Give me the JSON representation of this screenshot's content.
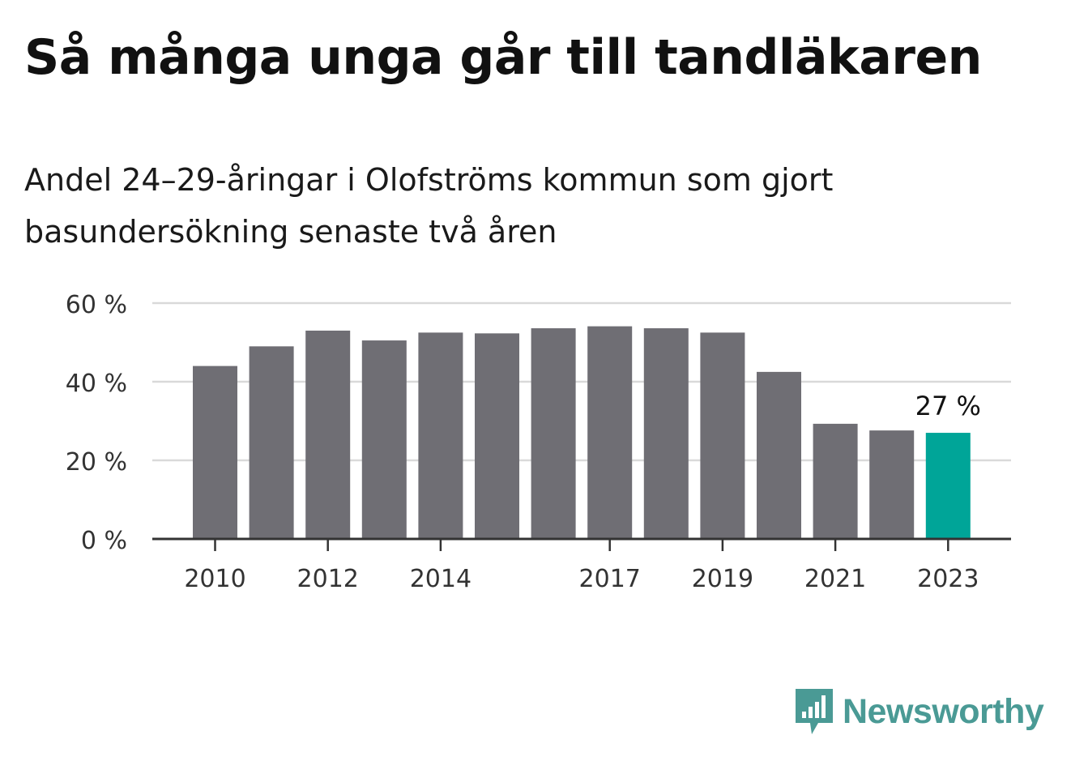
{
  "title": "Så många unga går till tandläkaren",
  "subtitle": "Andel 24–29-åringar i Olofströms kommun som gjort basundersökning senaste två åren",
  "logo_text": "Newsworthy",
  "colors": {
    "bar": "#6f6e74",
    "highlight": "#00a598",
    "grid": "#d9d9d9",
    "axis": "#333333",
    "logo": "#4a9a95"
  },
  "chart_data": {
    "type": "bar",
    "title": "Så många unga går till tandläkaren",
    "subtitle": "Andel 24–29-åringar i Olofströms kommun som gjort basundersökning senaste två åren",
    "xlabel": "",
    "ylabel": "",
    "categories": [
      "2010",
      "2011",
      "2012",
      "2013",
      "2014",
      "2015",
      "2016",
      "2017",
      "2018",
      "2019",
      "2020",
      "2021",
      "2022",
      "2023"
    ],
    "x_tick_labels": [
      "2010",
      "2012",
      "2014",
      "2017",
      "2019",
      "2021",
      "2023"
    ],
    "values": [
      44,
      49,
      53,
      50.5,
      52.5,
      52.3,
      53.6,
      54.1,
      53.6,
      52.5,
      42.5,
      29.3,
      27.6,
      27
    ],
    "y_ticks": [
      0,
      20,
      40,
      60
    ],
    "y_tick_labels": [
      "0 %",
      "20 %",
      "40 %",
      "60 %"
    ],
    "ylim": [
      0,
      60
    ],
    "highlight_index": 13,
    "annotations": [
      {
        "category": "2023",
        "text": "27 %"
      }
    ],
    "grid": true,
    "legend": "none"
  }
}
